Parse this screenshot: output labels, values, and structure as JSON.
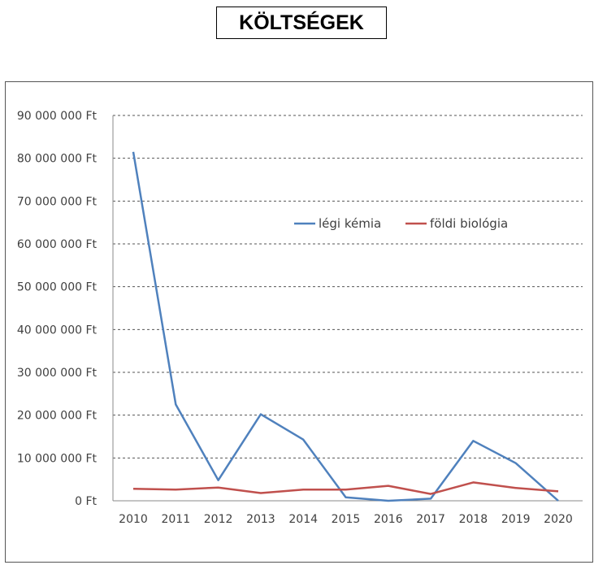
{
  "title": "KÖLTSÉGEK",
  "chart_data": {
    "type": "line",
    "title": "KÖLTSÉGEK",
    "xlabel": "",
    "ylabel": "",
    "x": [
      "2010",
      "2011",
      "2012",
      "2013",
      "2014",
      "2015",
      "2016",
      "2017",
      "2018",
      "2019",
      "2020"
    ],
    "ylim": [
      0,
      90000000
    ],
    "yticks": [
      0,
      10000000,
      20000000,
      30000000,
      40000000,
      50000000,
      60000000,
      70000000,
      80000000,
      90000000
    ],
    "ytick_labels": [
      "0 Ft",
      "10 000 000 Ft",
      "20 000 000 Ft",
      "30 000 000 Ft",
      "40 000 000 Ft",
      "50 000 000 Ft",
      "60 000 000 Ft",
      "70 000 000 Ft",
      "80 000 000 Ft",
      "90 000 000 Ft"
    ],
    "grid": true,
    "legend_position": "top-right",
    "series": [
      {
        "name": "légi kémia",
        "color": "#4f81bd",
        "values": [
          81500000,
          22500000,
          4800000,
          20200000,
          14300000,
          800000,
          0,
          500000,
          14000000,
          8800000,
          0
        ]
      },
      {
        "name": "földi biológia",
        "color": "#c0504d",
        "values": [
          2800000,
          2600000,
          3100000,
          1800000,
          2600000,
          2600000,
          3500000,
          1600000,
          4300000,
          3000000,
          2200000
        ]
      }
    ]
  }
}
